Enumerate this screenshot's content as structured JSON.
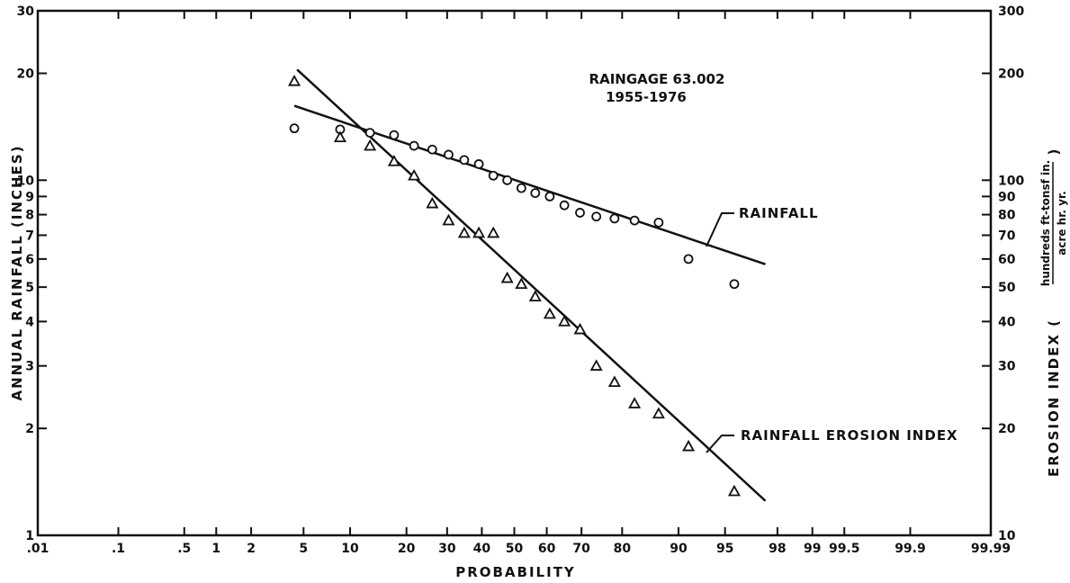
{
  "chart_data": {
    "type": "scatter",
    "title": "RAINGAGE 63.002",
    "subtitle": "1955-1976",
    "xlabel": "PROBABILITY",
    "ylabel_left": "ANNUAL RAINFALL (INCHES)",
    "ylabel_right_prefix": "EROSION INDEX (",
    "ylabel_right_numerator": "hundreds ft-tonsf in.",
    "ylabel_right_denominator": "acre hr. yr.",
    "ylabel_right_suffix": ")",
    "x_scale": "normal-probability",
    "y_scale": "log",
    "xlim": [
      0.01,
      99.99
    ],
    "ylim_left": [
      1,
      30
    ],
    "ylim_right": [
      10,
      300
    ],
    "x_ticks": [
      "0.01",
      ".1",
      ".5",
      "1",
      "2",
      "5",
      "10",
      "20",
      "30",
      "40",
      "50",
      "60",
      "70",
      "80",
      "90",
      "95",
      "98",
      "99",
      "99.5",
      "99.9",
      "99.99"
    ],
    "x_tick_labels": [
      ".01",
      ".1",
      ".5",
      "1",
      "2",
      "5",
      "10",
      "20",
      "30",
      "40",
      "50",
      "60",
      "70",
      "80",
      "90",
      "95",
      "98",
      "99",
      "99.5",
      "99.9",
      "99.99"
    ],
    "y_left_ticks": [
      1,
      2,
      3,
      4,
      5,
      6,
      7,
      8,
      9,
      10,
      20,
      30
    ],
    "y_right_ticks": [
      10,
      20,
      30,
      40,
      50,
      60,
      70,
      80,
      90,
      100,
      200,
      300
    ],
    "series": [
      {
        "name": "RAINFALL",
        "marker": "circle",
        "axis": "left",
        "x": [
          4.3,
          8.7,
          13,
          17.4,
          21.7,
          26.1,
          30.4,
          34.8,
          39.1,
          43.5,
          47.8,
          52.2,
          56.5,
          60.9,
          65.2,
          69.6,
          73.9,
          78.3,
          82.6,
          87,
          91.3,
          95.7
        ],
        "y": [
          14,
          13.9,
          13.6,
          13.4,
          12.5,
          12.2,
          11.8,
          11.4,
          11.1,
          10.3,
          10.0,
          9.5,
          9.2,
          9.0,
          8.5,
          8.1,
          7.9,
          7.8,
          7.7,
          7.6,
          6.0,
          5.1
        ],
        "fit_line": {
          "x": [
            4.3,
            97.5
          ],
          "y": [
            16.2,
            5.8
          ]
        }
      },
      {
        "name": "RAINFALL EROSION INDEX",
        "marker": "triangle",
        "axis": "right",
        "x": [
          4.3,
          8.7,
          13,
          17.4,
          21.7,
          26.1,
          30.4,
          34.8,
          39.1,
          43.5,
          47.8,
          52.2,
          56.5,
          60.9,
          65.2,
          69.6,
          73.9,
          78.3,
          82.6,
          87,
          91.3,
          95.7
        ],
        "y": [
          190,
          132,
          125,
          113,
          103,
          86,
          77,
          71,
          71,
          71,
          53,
          51,
          47,
          42,
          40,
          38,
          30,
          27,
          23.5,
          22,
          17.8,
          13.3
        ],
        "fit_line": {
          "x": [
            4.5,
            97.5
          ],
          "y": [
            205,
            12.5
          ]
        }
      }
    ],
    "annotations": [
      {
        "text": "RAINFALL",
        "points_to": "RAINFALL"
      },
      {
        "text": "RAINFALL EROSION INDEX",
        "points_to": "RAINFALL EROSION INDEX"
      }
    ],
    "grid": false,
    "colors": {
      "ink": "#111111",
      "background": "#ffffff"
    }
  }
}
